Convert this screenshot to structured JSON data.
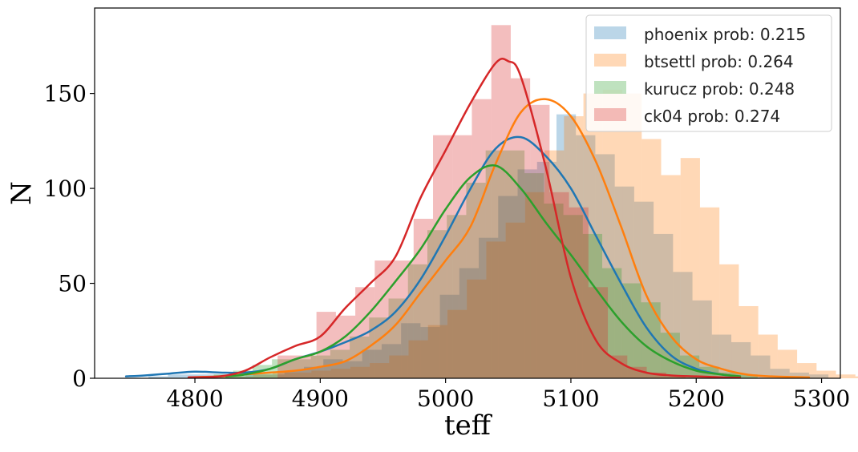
{
  "chart_data": {
    "type": "histogram",
    "xlabel": "teff",
    "ylabel": "N",
    "xlim": [
      4720,
      5315
    ],
    "ylim": [
      0,
      195
    ],
    "xticks": [
      4800,
      4900,
      5000,
      5100,
      5200,
      5300
    ],
    "yticks": [
      0,
      50,
      100,
      150
    ],
    "legend_position": "upper right",
    "bin_width": 15.5,
    "series": [
      {
        "name": "phoenix prob: 0.215",
        "color": "#1f77b4",
        "bin_start": 4763,
        "counts": [
          1,
          2,
          2,
          2,
          1,
          2,
          2,
          4,
          6,
          10,
          9,
          15,
          18,
          29,
          27,
          44,
          58,
          74,
          96,
          110,
          114,
          139,
          128,
          118,
          101,
          93,
          76,
          56,
          41,
          23,
          19,
          12,
          5,
          3,
          2
        ],
        "kde_x": [
          4745,
          4760,
          4780,
          4800,
          4820,
          4840,
          4860,
          4880,
          4900,
          4920,
          4940,
          4960,
          4980,
          5000,
          5020,
          5040,
          5060,
          5080,
          5100,
          5120,
          5140,
          5160,
          5180,
          5200,
          5220,
          5235
        ],
        "kde_y": [
          1,
          1.5,
          2.5,
          3.5,
          3,
          3,
          5,
          10,
          14,
          19,
          25,
          35,
          52,
          75,
          100,
          121,
          127,
          117,
          100,
          75,
          50,
          27,
          12,
          5,
          2,
          1
        ]
      },
      {
        "name": "btsettl prob: 0.264",
        "color": "#ff7f0e",
        "bin_start": 4800,
        "counts": [
          1,
          1,
          1,
          2,
          3,
          3,
          4,
          5,
          6,
          8,
          12,
          20,
          28,
          36,
          52,
          72,
          82,
          98,
          120,
          138,
          150,
          152,
          150,
          126,
          107,
          116,
          90,
          60,
          38,
          23,
          15,
          8,
          4,
          2,
          1
        ],
        "kde_x": [
          4795,
          4820,
          4840,
          4860,
          4880,
          4900,
          4920,
          4940,
          4960,
          4980,
          5000,
          5020,
          5040,
          5060,
          5080,
          5100,
          5120,
          5140,
          5160,
          5180,
          5200,
          5220,
          5240,
          5260,
          5290
        ],
        "kde_y": [
          0.5,
          1,
          2,
          3,
          4,
          6,
          9,
          17,
          28,
          45,
          62,
          80,
          113,
          140,
          147,
          138,
          114,
          80,
          44,
          22,
          10,
          5,
          2,
          1,
          0.5
        ]
      },
      {
        "name": "kurucz prob: 0.248",
        "color": "#2ca02c",
        "bin_start": 4815,
        "counts": [
          2,
          4,
          7,
          10,
          10,
          12,
          15,
          22,
          32,
          42,
          60,
          78,
          86,
          103,
          120,
          120,
          108,
          92,
          86,
          76,
          58,
          50,
          40,
          24,
          12,
          6,
          3,
          2
        ],
        "kde_x": [
          4825,
          4840,
          4860,
          4880,
          4900,
          4920,
          4940,
          4960,
          4980,
          5000,
          5020,
          5040,
          5060,
          5080,
          5100,
          5120,
          5140,
          5160,
          5180,
          5200,
          5220,
          5235
        ],
        "kde_y": [
          1,
          2,
          5,
          10,
          14,
          22,
          35,
          51,
          68,
          89,
          106,
          112,
          100,
          82,
          65,
          47,
          30,
          17,
          9,
          4,
          2,
          1
        ]
      },
      {
        "name": "ck04 prob: 0.274",
        "color": "#d62728",
        "bin_start": 4866,
        "counts": [
          12,
          12,
          35,
          33,
          48,
          62,
          62,
          84,
          128,
          128,
          147,
          186,
          158,
          144,
          98,
          90,
          48,
          12,
          6,
          3,
          1
        ],
        "kde_x": [
          4795,
          4820,
          4840,
          4860,
          4880,
          4900,
          4920,
          4940,
          4960,
          4980,
          5000,
          5020,
          5040,
          5050,
          5060,
          5080,
          5100,
          5120,
          5140,
          5160,
          5180,
          5200,
          5220,
          5235
        ],
        "kde_y": [
          0.5,
          1,
          4,
          11,
          17,
          22,
          37,
          50,
          64,
          95,
          120,
          145,
          166,
          167,
          159,
          111,
          53,
          20,
          8,
          3,
          1.5,
          1,
          0.5,
          0.3
        ]
      }
    ]
  }
}
